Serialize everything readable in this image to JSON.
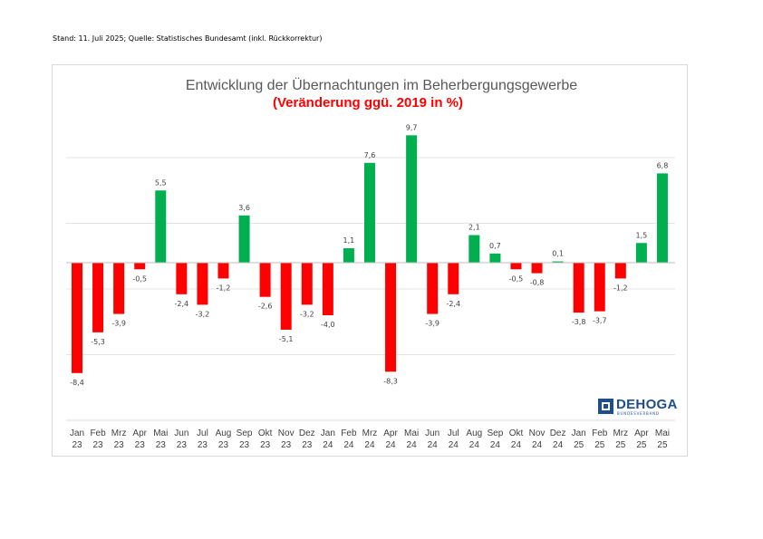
{
  "header": {
    "stand": "Stand: 11. Juli 2025; Quelle: Statistisches Bundesamt (inkl. Rückkorrektur)"
  },
  "logo": {
    "word": "DEHOGA",
    "sub": "BUNDESVERBAND"
  },
  "colors": {
    "positive": "#00b050",
    "negative": "#ff0000",
    "title": "#595959",
    "subtitle": "#ff0000"
  },
  "chart_data": {
    "type": "bar",
    "title": "Entwicklung der Übernachtungen im Beherbergungsgewerbe",
    "subtitle": "(Veränderung ggü. 2019 in %)",
    "ylim": [
      -10,
      10
    ],
    "grid": true,
    "categories": [
      [
        "Jan",
        "23"
      ],
      [
        "Feb",
        "23"
      ],
      [
        "Mrz",
        "23"
      ],
      [
        "Apr",
        "23"
      ],
      [
        "Mai",
        "23"
      ],
      [
        "Jun",
        "23"
      ],
      [
        "Jul",
        "23"
      ],
      [
        "Aug",
        "23"
      ],
      [
        "Sep",
        "23"
      ],
      [
        "Okt",
        "23"
      ],
      [
        "Nov",
        "23"
      ],
      [
        "Dez",
        "23"
      ],
      [
        "Jan",
        "24"
      ],
      [
        "Feb",
        "24"
      ],
      [
        "Mrz",
        "24"
      ],
      [
        "Apr",
        "24"
      ],
      [
        "Mai",
        "24"
      ],
      [
        "Jun",
        "24"
      ],
      [
        "Jul",
        "24"
      ],
      [
        "Aug",
        "24"
      ],
      [
        "Sep",
        "24"
      ],
      [
        "Okt",
        "24"
      ],
      [
        "Nov",
        "24"
      ],
      [
        "Dez",
        "24"
      ],
      [
        "Jan",
        "25"
      ],
      [
        "Feb",
        "25"
      ],
      [
        "Mrz",
        "25"
      ],
      [
        "Apr",
        "25"
      ],
      [
        "Mai",
        "25"
      ]
    ],
    "values": [
      -8.4,
      -5.3,
      -3.9,
      -0.5,
      5.5,
      -2.4,
      -3.2,
      -1.2,
      3.6,
      -2.6,
      -5.1,
      -3.2,
      -4.0,
      1.1,
      7.6,
      -8.3,
      9.7,
      -3.9,
      -2.4,
      2.1,
      0.7,
      -0.5,
      -0.8,
      0.1,
      -3.8,
      -3.7,
      -1.2,
      1.5,
      6.8
    ],
    "labels": [
      "-8,4",
      "-5,3",
      "-3,9",
      "-0,5",
      "5,5",
      "-2,4",
      "-3,2",
      "-1,2",
      "3,6",
      "-2,6",
      "-5,1",
      "-3,2",
      "-4,0",
      "1,1",
      "7,6",
      "-8,3",
      "9,7",
      "-3,9",
      "-2,4",
      "2,1",
      "0,7",
      "-0,5",
      "-0,8",
      "0,1",
      "-3,8",
      "-3,7",
      "-1,2",
      "1,5",
      "6,8"
    ]
  }
}
